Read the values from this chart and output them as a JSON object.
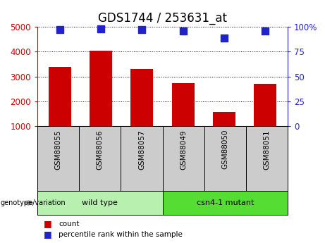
{
  "title": "GDS1744 / 253631_at",
  "categories": [
    "GSM88055",
    "GSM88056",
    "GSM88057",
    "GSM88049",
    "GSM88050",
    "GSM88051"
  ],
  "bar_values": [
    3400,
    4050,
    3300,
    2750,
    1580,
    2700
  ],
  "percentile_values": [
    97,
    98,
    97,
    95.5,
    89,
    95.5
  ],
  "bar_color": "#cc0000",
  "dot_color": "#2222cc",
  "ylim_left": [
    1000,
    5000
  ],
  "ylim_right": [
    0,
    100
  ],
  "yticks_left": [
    1000,
    2000,
    3000,
    4000,
    5000
  ],
  "yticks_right": [
    0,
    25,
    50,
    75,
    100
  ],
  "yticklabels_right": [
    "0",
    "25",
    "50",
    "75",
    "100%"
  ],
  "groups": [
    {
      "label": "wild type",
      "indices": [
        0,
        1,
        2
      ],
      "color": "#b8f0b0"
    },
    {
      "label": "csn4-1 mutant",
      "indices": [
        3,
        4,
        5
      ],
      "color": "#55dd33"
    }
  ],
  "group_label": "genotype/variation",
  "legend_count_label": "count",
  "legend_percentile_label": "percentile rank within the sample",
  "title_fontsize": 12,
  "tick_label_fontsize": 8.5,
  "axis_tick_color_left": "#cc0000",
  "axis_tick_color_right": "#2222cc",
  "bar_width": 0.55,
  "dot_size": 55,
  "xlim": [
    -0.55,
    5.55
  ]
}
